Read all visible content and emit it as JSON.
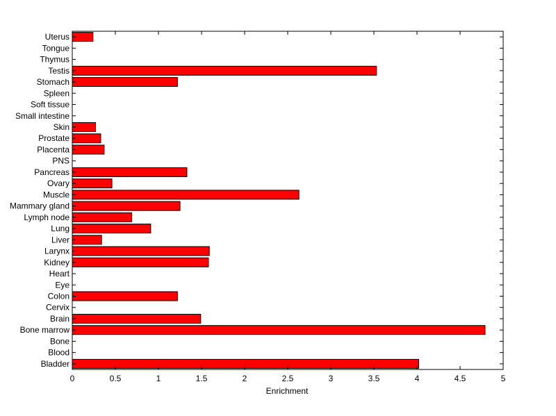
{
  "chart_data": {
    "type": "bar",
    "orientation": "horizontal",
    "title": "",
    "xlabel": "Enrichment",
    "ylabel": "",
    "xlim": [
      0,
      5
    ],
    "xticks": [
      "0",
      "0.5",
      "1",
      "1.5",
      "2",
      "2.5",
      "3",
      "3.5",
      "4",
      "4.5",
      "5"
    ],
    "grid": false,
    "legend": "none",
    "bar_color": "#ff0000",
    "edge_color": "#000000",
    "categories": [
      "Bladder",
      "Blood",
      "Bone",
      "Bone marrow",
      "Brain",
      "Cervix",
      "Colon",
      "Eye",
      "Heart",
      "Kidney",
      "Larynx",
      "Liver",
      "Lung",
      "Lymph node",
      "Mammary gland",
      "Muscle",
      "Ovary",
      "Pancreas",
      "PNS",
      "Placenta",
      "Prostate",
      "Skin",
      "Small intestine",
      "Soft tissue",
      "Spleen",
      "Stomach",
      "Testis",
      "Thymus",
      "Tongue",
      "Uterus"
    ],
    "values": [
      4.02,
      0,
      0,
      4.79,
      1.49,
      0,
      1.22,
      0,
      0,
      1.58,
      1.59,
      0.34,
      0.91,
      0.69,
      1.25,
      2.63,
      0.46,
      1.33,
      0,
      0.37,
      0.33,
      0.27,
      0,
      0,
      0,
      1.22,
      3.53,
      0,
      0,
      0.24
    ]
  }
}
